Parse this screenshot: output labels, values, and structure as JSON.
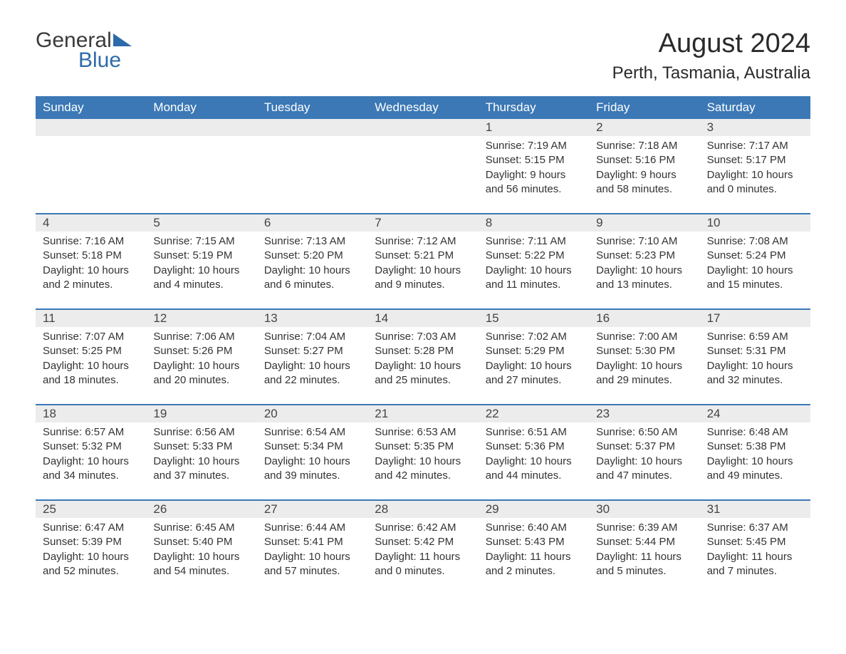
{
  "logo": {
    "text1": "General",
    "text2": "Blue"
  },
  "title": "August 2024",
  "subtitle": "Perth, Tasmania, Australia",
  "colors": {
    "header_bg": "#3b78b5",
    "header_text": "#ffffff",
    "daynum_bg": "#ececec",
    "border": "#3b78b5",
    "text": "#333333",
    "logo_blue": "#2d6aa9"
  },
  "dayNames": [
    "Sunday",
    "Monday",
    "Tuesday",
    "Wednesday",
    "Thursday",
    "Friday",
    "Saturday"
  ],
  "weeks": [
    {
      "nums": [
        "",
        "",
        "",
        "",
        "1",
        "2",
        "3"
      ],
      "info": [
        "",
        "",
        "",
        "",
        "Sunrise: 7:19 AM\nSunset: 5:15 PM\nDaylight: 9 hours and 56 minutes.",
        "Sunrise: 7:18 AM\nSunset: 5:16 PM\nDaylight: 9 hours and 58 minutes.",
        "Sunrise: 7:17 AM\nSunset: 5:17 PM\nDaylight: 10 hours and 0 minutes."
      ]
    },
    {
      "nums": [
        "4",
        "5",
        "6",
        "7",
        "8",
        "9",
        "10"
      ],
      "info": [
        "Sunrise: 7:16 AM\nSunset: 5:18 PM\nDaylight: 10 hours and 2 minutes.",
        "Sunrise: 7:15 AM\nSunset: 5:19 PM\nDaylight: 10 hours and 4 minutes.",
        "Sunrise: 7:13 AM\nSunset: 5:20 PM\nDaylight: 10 hours and 6 minutes.",
        "Sunrise: 7:12 AM\nSunset: 5:21 PM\nDaylight: 10 hours and 9 minutes.",
        "Sunrise: 7:11 AM\nSunset: 5:22 PM\nDaylight: 10 hours and 11 minutes.",
        "Sunrise: 7:10 AM\nSunset: 5:23 PM\nDaylight: 10 hours and 13 minutes.",
        "Sunrise: 7:08 AM\nSunset: 5:24 PM\nDaylight: 10 hours and 15 minutes."
      ]
    },
    {
      "nums": [
        "11",
        "12",
        "13",
        "14",
        "15",
        "16",
        "17"
      ],
      "info": [
        "Sunrise: 7:07 AM\nSunset: 5:25 PM\nDaylight: 10 hours and 18 minutes.",
        "Sunrise: 7:06 AM\nSunset: 5:26 PM\nDaylight: 10 hours and 20 minutes.",
        "Sunrise: 7:04 AM\nSunset: 5:27 PM\nDaylight: 10 hours and 22 minutes.",
        "Sunrise: 7:03 AM\nSunset: 5:28 PM\nDaylight: 10 hours and 25 minutes.",
        "Sunrise: 7:02 AM\nSunset: 5:29 PM\nDaylight: 10 hours and 27 minutes.",
        "Sunrise: 7:00 AM\nSunset: 5:30 PM\nDaylight: 10 hours and 29 minutes.",
        "Sunrise: 6:59 AM\nSunset: 5:31 PM\nDaylight: 10 hours and 32 minutes."
      ]
    },
    {
      "nums": [
        "18",
        "19",
        "20",
        "21",
        "22",
        "23",
        "24"
      ],
      "info": [
        "Sunrise: 6:57 AM\nSunset: 5:32 PM\nDaylight: 10 hours and 34 minutes.",
        "Sunrise: 6:56 AM\nSunset: 5:33 PM\nDaylight: 10 hours and 37 minutes.",
        "Sunrise: 6:54 AM\nSunset: 5:34 PM\nDaylight: 10 hours and 39 minutes.",
        "Sunrise: 6:53 AM\nSunset: 5:35 PM\nDaylight: 10 hours and 42 minutes.",
        "Sunrise: 6:51 AM\nSunset: 5:36 PM\nDaylight: 10 hours and 44 minutes.",
        "Sunrise: 6:50 AM\nSunset: 5:37 PM\nDaylight: 10 hours and 47 minutes.",
        "Sunrise: 6:48 AM\nSunset: 5:38 PM\nDaylight: 10 hours and 49 minutes."
      ]
    },
    {
      "nums": [
        "25",
        "26",
        "27",
        "28",
        "29",
        "30",
        "31"
      ],
      "info": [
        "Sunrise: 6:47 AM\nSunset: 5:39 PM\nDaylight: 10 hours and 52 minutes.",
        "Sunrise: 6:45 AM\nSunset: 5:40 PM\nDaylight: 10 hours and 54 minutes.",
        "Sunrise: 6:44 AM\nSunset: 5:41 PM\nDaylight: 10 hours and 57 minutes.",
        "Sunrise: 6:42 AM\nSunset: 5:42 PM\nDaylight: 11 hours and 0 minutes.",
        "Sunrise: 6:40 AM\nSunset: 5:43 PM\nDaylight: 11 hours and 2 minutes.",
        "Sunrise: 6:39 AM\nSunset: 5:44 PM\nDaylight: 11 hours and 5 minutes.",
        "Sunrise: 6:37 AM\nSunset: 5:45 PM\nDaylight: 11 hours and 7 minutes."
      ]
    }
  ]
}
